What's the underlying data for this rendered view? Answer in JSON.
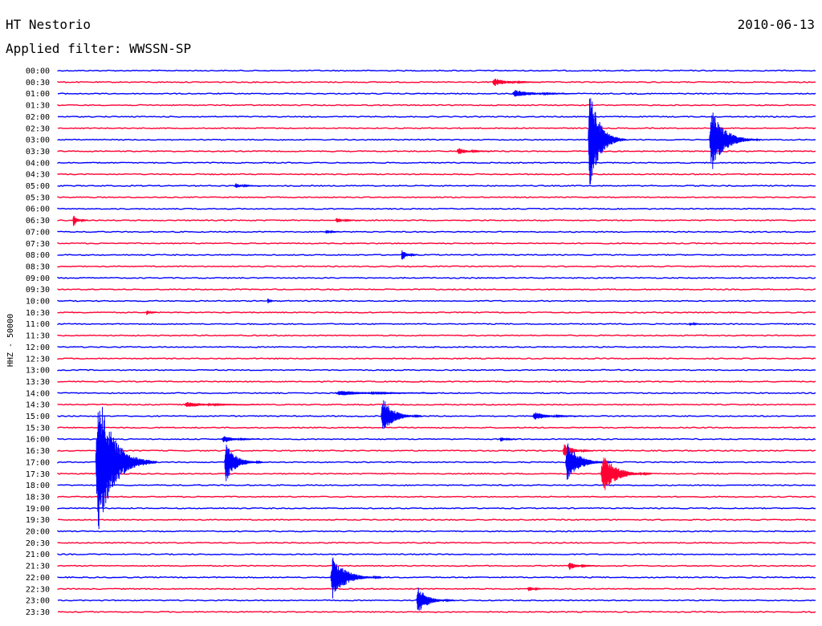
{
  "header": {
    "station": "HT Nestorio",
    "date": "2010-06-13",
    "filter": "Applied filter: WWSSN-SP"
  },
  "chart_data": {
    "type": "line",
    "title": "HT Nestorio",
    "subtitle": "Applied filter: WWSSN-SP",
    "ylabel": "HHZ - 50000",
    "xlabel": "",
    "grid": false,
    "trace_colors": [
      "#0000ff",
      "#ff0033"
    ],
    "row_minutes": 30,
    "rows": [
      "00:00",
      "00:30",
      "01:00",
      "01:30",
      "02:00",
      "02:30",
      "03:00",
      "03:30",
      "04:00",
      "04:30",
      "05:00",
      "05:30",
      "06:00",
      "06:30",
      "07:00",
      "07:30",
      "08:00",
      "08:30",
      "09:00",
      "09:30",
      "10:00",
      "10:30",
      "11:00",
      "11:30",
      "12:00",
      "12:30",
      "13:00",
      "13:30",
      "14:00",
      "14:30",
      "15:00",
      "15:30",
      "16:00",
      "16:30",
      "17:00",
      "17:30",
      "18:00",
      "18:30",
      "19:00",
      "19:30",
      "20:00",
      "20:30",
      "21:00",
      "21:30",
      "22:00",
      "22:30",
      "23:00",
      "23:30"
    ],
    "events": [
      {
        "row": "00:30",
        "minute": 17.2,
        "amplitude": 6,
        "duration_min": 2.0
      },
      {
        "row": "01:00",
        "minute": 18.0,
        "amplitude": 6,
        "duration_min": 2.5
      },
      {
        "row": "03:00",
        "minute": 21.0,
        "amplitude": 80,
        "duration_min": 1.5
      },
      {
        "row": "03:00",
        "minute": 25.8,
        "amplitude": 48,
        "duration_min": 2.0
      },
      {
        "row": "03:30",
        "minute": 15.8,
        "amplitude": 5,
        "duration_min": 1.5
      },
      {
        "row": "05:00",
        "minute": 7.0,
        "amplitude": 4,
        "duration_min": 1.0
      },
      {
        "row": "06:30",
        "minute": 0.6,
        "amplitude": 10,
        "duration_min": 0.6
      },
      {
        "row": "06:30",
        "minute": 11.0,
        "amplitude": 4,
        "duration_min": 1.0
      },
      {
        "row": "07:00",
        "minute": 10.6,
        "amplitude": 4,
        "duration_min": 0.6
      },
      {
        "row": "08:00",
        "minute": 13.6,
        "amplitude": 9,
        "duration_min": 0.7
      },
      {
        "row": "10:00",
        "minute": 8.3,
        "amplitude": 5,
        "duration_min": 0.3
      },
      {
        "row": "10:30",
        "minute": 3.5,
        "amplitude": 4,
        "duration_min": 0.5
      },
      {
        "row": "11:00",
        "minute": 25.0,
        "amplitude": 3,
        "duration_min": 0.6
      },
      {
        "row": "14:00",
        "minute": 11.0,
        "amplitude": 4,
        "duration_min": 4.0
      },
      {
        "row": "14:30",
        "minute": 5.0,
        "amplitude": 4,
        "duration_min": 3.0
      },
      {
        "row": "15:00",
        "minute": 12.8,
        "amplitude": 28,
        "duration_min": 1.6
      },
      {
        "row": "15:00",
        "minute": 18.8,
        "amplitude": 6,
        "duration_min": 2.0
      },
      {
        "row": "16:00",
        "minute": 6.5,
        "amplitude": 6,
        "duration_min": 1.5
      },
      {
        "row": "16:00",
        "minute": 17.5,
        "amplitude": 4,
        "duration_min": 0.7
      },
      {
        "row": "16:30",
        "minute": 20.0,
        "amplitude": 12,
        "duration_min": 1.2
      },
      {
        "row": "17:00",
        "minute": 1.5,
        "amplitude": 110,
        "duration_min": 2.4
      },
      {
        "row": "17:00",
        "minute": 6.6,
        "amplitude": 30,
        "duration_min": 1.5
      },
      {
        "row": "17:00",
        "minute": 20.1,
        "amplitude": 30,
        "duration_min": 1.8
      },
      {
        "row": "17:30",
        "minute": 21.5,
        "amplitude": 30,
        "duration_min": 2.0
      },
      {
        "row": "21:30",
        "minute": 20.2,
        "amplitude": 6,
        "duration_min": 1.2
      },
      {
        "row": "22:00",
        "minute": 10.8,
        "amplitude": 32,
        "duration_min": 2.0
      },
      {
        "row": "22:30",
        "minute": 18.6,
        "amplitude": 4,
        "duration_min": 0.8
      },
      {
        "row": "23:00",
        "minute": 14.2,
        "amplitude": 20,
        "duration_min": 1.5
      }
    ]
  }
}
